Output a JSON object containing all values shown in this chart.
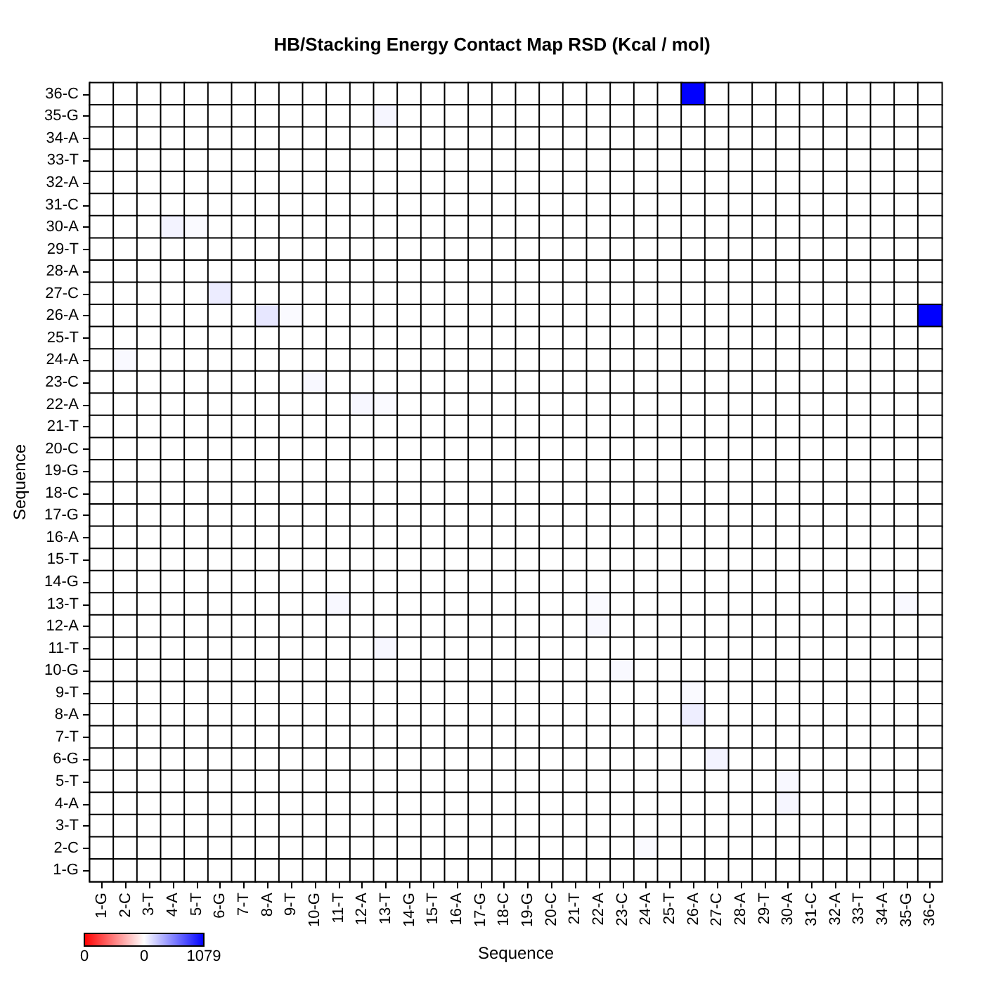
{
  "chart_data": {
    "type": "heatmap",
    "title": "HB/Stacking Energy Contact Map RSD (Kcal / mol)",
    "xlabel": "Sequence",
    "ylabel": "Sequence",
    "categories": [
      "1-G",
      "2-C",
      "3-T",
      "4-A",
      "5-T",
      "6-G",
      "7-T",
      "8-A",
      "9-T",
      "10-G",
      "11-T",
      "12-A",
      "13-T",
      "14-G",
      "15-T",
      "16-A",
      "17-G",
      "18-C",
      "19-G",
      "20-C",
      "21-T",
      "22-A",
      "23-C",
      "24-A",
      "25-T",
      "26-A",
      "27-C",
      "28-A",
      "29-T",
      "30-A",
      "31-C",
      "32-A",
      "33-T",
      "34-A",
      "35-G",
      "36-C"
    ],
    "y_categories": [
      "36-C",
      "35-G",
      "34-A",
      "33-T",
      "32-A",
      "31-C",
      "30-A",
      "29-T",
      "28-A",
      "27-C",
      "26-A",
      "25-T",
      "24-A",
      "23-C",
      "22-A",
      "21-T",
      "20-C",
      "19-G",
      "18-C",
      "17-G",
      "16-A",
      "15-T",
      "14-G",
      "13-T",
      "12-A",
      "11-T",
      "10-G",
      "9-T",
      "8-A",
      "7-T",
      "6-G",
      "5-T",
      "4-A",
      "3-T",
      "2-C",
      "1-G"
    ],
    "cells": [
      [
        0,
        0,
        0,
        0,
        0,
        0,
        0,
        0,
        0,
        0,
        0,
        0,
        0,
        0,
        0,
        0,
        0,
        0,
        0,
        0,
        0,
        0,
        0,
        0,
        0,
        1079,
        0,
        0,
        0,
        0,
        0,
        0,
        0,
        0,
        0,
        0
      ],
      [
        0,
        0,
        0,
        0,
        0,
        0,
        0,
        0,
        0,
        0,
        0,
        0,
        40,
        0,
        0,
        0,
        0,
        0,
        0,
        0,
        0,
        0,
        0,
        0,
        0,
        0,
        0,
        0,
        0,
        0,
        0,
        0,
        0,
        0,
        0,
        0
      ],
      [
        0,
        0,
        0,
        0,
        0,
        0,
        0,
        0,
        0,
        0,
        0,
        0,
        0,
        0,
        0,
        0,
        0,
        0,
        0,
        0,
        0,
        0,
        0,
        0,
        0,
        0,
        0,
        0,
        0,
        0,
        0,
        0,
        0,
        0,
        0,
        0
      ],
      [
        0,
        0,
        0,
        0,
        0,
        0,
        0,
        0,
        0,
        0,
        0,
        0,
        0,
        0,
        0,
        0,
        0,
        0,
        0,
        0,
        0,
        0,
        0,
        0,
        0,
        0,
        0,
        0,
        0,
        0,
        0,
        0,
        0,
        0,
        0,
        0
      ],
      [
        0,
        0,
        0,
        0,
        0,
        0,
        0,
        0,
        0,
        0,
        0,
        0,
        0,
        0,
        0,
        0,
        0,
        0,
        0,
        0,
        0,
        0,
        0,
        0,
        0,
        0,
        0,
        0,
        0,
        0,
        0,
        0,
        0,
        0,
        0,
        0
      ],
      [
        0,
        0,
        0,
        0,
        0,
        0,
        0,
        0,
        0,
        0,
        0,
        0,
        0,
        0,
        0,
        0,
        0,
        0,
        0,
        0,
        0,
        0,
        0,
        0,
        0,
        0,
        0,
        0,
        0,
        0,
        0,
        0,
        0,
        0,
        0,
        0
      ],
      [
        0,
        0,
        0,
        50,
        20,
        0,
        0,
        0,
        0,
        0,
        0,
        0,
        0,
        0,
        0,
        0,
        0,
        0,
        0,
        0,
        0,
        0,
        0,
        0,
        0,
        0,
        0,
        0,
        0,
        0,
        0,
        0,
        0,
        0,
        0,
        0
      ],
      [
        0,
        0,
        0,
        0,
        0,
        0,
        0,
        0,
        0,
        0,
        0,
        0,
        0,
        0,
        0,
        0,
        0,
        0,
        0,
        0,
        0,
        0,
        0,
        0,
        0,
        0,
        0,
        0,
        0,
        0,
        0,
        0,
        0,
        0,
        0,
        0
      ],
      [
        0,
        0,
        0,
        0,
        0,
        0,
        0,
        0,
        0,
        0,
        0,
        0,
        0,
        0,
        0,
        0,
        0,
        0,
        0,
        0,
        0,
        0,
        0,
        0,
        0,
        0,
        0,
        0,
        0,
        0,
        0,
        0,
        0,
        0,
        0,
        0
      ],
      [
        0,
        0,
        0,
        0,
        0,
        80,
        0,
        0,
        0,
        0,
        0,
        0,
        0,
        0,
        0,
        0,
        0,
        0,
        0,
        0,
        0,
        0,
        0,
        0,
        0,
        0,
        0,
        0,
        0,
        0,
        0,
        0,
        0,
        0,
        0,
        0
      ],
      [
        0,
        0,
        0,
        0,
        0,
        0,
        0,
        100,
        20,
        0,
        0,
        0,
        0,
        0,
        0,
        0,
        0,
        0,
        0,
        0,
        0,
        0,
        0,
        0,
        0,
        0,
        0,
        0,
        0,
        0,
        0,
        0,
        0,
        0,
        0,
        1079
      ],
      [
        0,
        0,
        0,
        0,
        0,
        0,
        0,
        0,
        0,
        0,
        0,
        0,
        0,
        0,
        0,
        0,
        0,
        0,
        0,
        0,
        0,
        0,
        0,
        0,
        0,
        0,
        0,
        0,
        0,
        0,
        0,
        0,
        0,
        0,
        0,
        0
      ],
      [
        0,
        25,
        0,
        0,
        0,
        0,
        0,
        0,
        0,
        0,
        0,
        0,
        0,
        0,
        0,
        0,
        0,
        0,
        0,
        0,
        0,
        0,
        0,
        0,
        0,
        0,
        0,
        0,
        0,
        0,
        0,
        0,
        0,
        0,
        0,
        0
      ],
      [
        0,
        0,
        0,
        0,
        0,
        0,
        0,
        0,
        0,
        30,
        0,
        0,
        0,
        0,
        0,
        0,
        0,
        0,
        0,
        0,
        0,
        0,
        0,
        0,
        0,
        0,
        0,
        0,
        0,
        0,
        0,
        0,
        0,
        0,
        0,
        0
      ],
      [
        0,
        0,
        0,
        0,
        0,
        0,
        0,
        0,
        0,
        0,
        0,
        35,
        20,
        0,
        0,
        0,
        0,
        0,
        0,
        0,
        0,
        0,
        0,
        0,
        0,
        0,
        0,
        0,
        0,
        0,
        0,
        0,
        0,
        0,
        0,
        0
      ],
      [
        0,
        0,
        0,
        0,
        0,
        0,
        0,
        0,
        0,
        0,
        0,
        0,
        0,
        0,
        0,
        0,
        0,
        0,
        0,
        0,
        0,
        0,
        0,
        0,
        0,
        0,
        0,
        0,
        0,
        0,
        0,
        0,
        0,
        0,
        0,
        0
      ],
      [
        0,
        0,
        0,
        0,
        0,
        0,
        0,
        0,
        0,
        0,
        0,
        0,
        0,
        0,
        0,
        0,
        0,
        0,
        0,
        0,
        0,
        0,
        0,
        0,
        0,
        0,
        0,
        0,
        0,
        0,
        0,
        0,
        0,
        0,
        0,
        0
      ],
      [
        0,
        0,
        0,
        0,
        0,
        0,
        0,
        0,
        0,
        0,
        0,
        0,
        0,
        0,
        0,
        0,
        0,
        0,
        0,
        0,
        0,
        0,
        0,
        0,
        0,
        0,
        0,
        0,
        0,
        0,
        0,
        0,
        0,
        0,
        0,
        0
      ],
      [
        0,
        0,
        0,
        0,
        0,
        0,
        0,
        0,
        0,
        0,
        0,
        0,
        0,
        0,
        0,
        0,
        0,
        0,
        0,
        0,
        0,
        0,
        0,
        0,
        0,
        0,
        0,
        0,
        0,
        0,
        0,
        0,
        0,
        0,
        0,
        0
      ],
      [
        0,
        0,
        0,
        0,
        0,
        0,
        0,
        0,
        0,
        0,
        0,
        0,
        0,
        0,
        0,
        0,
        0,
        0,
        0,
        0,
        0,
        0,
        0,
        0,
        0,
        0,
        0,
        0,
        0,
        0,
        0,
        0,
        0,
        0,
        0,
        0
      ],
      [
        0,
        0,
        0,
        0,
        0,
        0,
        0,
        0,
        0,
        0,
        0,
        0,
        0,
        0,
        0,
        0,
        0,
        0,
        0,
        0,
        0,
        0,
        0,
        0,
        0,
        0,
        0,
        0,
        0,
        0,
        0,
        0,
        0,
        0,
        0,
        0
      ],
      [
        0,
        0,
        0,
        0,
        0,
        0,
        0,
        0,
        0,
        0,
        0,
        0,
        0,
        0,
        0,
        0,
        0,
        0,
        0,
        0,
        0,
        0,
        0,
        0,
        0,
        0,
        0,
        0,
        0,
        0,
        0,
        0,
        0,
        0,
        0,
        0
      ],
      [
        0,
        0,
        0,
        0,
        0,
        0,
        0,
        0,
        0,
        0,
        0,
        0,
        0,
        0,
        0,
        0,
        0,
        0,
        0,
        0,
        0,
        0,
        0,
        0,
        0,
        0,
        0,
        0,
        0,
        0,
        0,
        0,
        0,
        0,
        0,
        0
      ],
      [
        0,
        0,
        0,
        0,
        0,
        0,
        0,
        0,
        0,
        0,
        30,
        0,
        0,
        0,
        0,
        0,
        0,
        0,
        0,
        0,
        0,
        20,
        0,
        0,
        0,
        0,
        0,
        0,
        0,
        0,
        0,
        0,
        0,
        0,
        25,
        0
      ],
      [
        0,
        0,
        0,
        0,
        0,
        0,
        0,
        0,
        0,
        0,
        0,
        0,
        0,
        0,
        0,
        0,
        0,
        0,
        0,
        0,
        0,
        30,
        0,
        0,
        0,
        0,
        0,
        0,
        0,
        0,
        0,
        0,
        0,
        0,
        0,
        0
      ],
      [
        0,
        0,
        0,
        0,
        0,
        0,
        0,
        0,
        0,
        0,
        0,
        0,
        35,
        0,
        0,
        0,
        0,
        0,
        0,
        0,
        0,
        0,
        0,
        0,
        0,
        0,
        0,
        0,
        0,
        0,
        0,
        0,
        0,
        0,
        0,
        0
      ],
      [
        0,
        0,
        0,
        0,
        0,
        0,
        0,
        0,
        0,
        0,
        0,
        0,
        0,
        0,
        0,
        0,
        0,
        0,
        0,
        0,
        0,
        0,
        25,
        0,
        0,
        0,
        0,
        0,
        0,
        0,
        0,
        0,
        0,
        0,
        0,
        0
      ],
      [
        0,
        0,
        0,
        0,
        0,
        0,
        0,
        0,
        0,
        0,
        0,
        0,
        0,
        0,
        0,
        0,
        0,
        0,
        0,
        0,
        0,
        0,
        0,
        0,
        0,
        20,
        0,
        0,
        0,
        0,
        0,
        0,
        0,
        0,
        0,
        0
      ],
      [
        0,
        0,
        0,
        0,
        0,
        0,
        0,
        0,
        0,
        0,
        0,
        0,
        0,
        0,
        0,
        0,
        0,
        0,
        0,
        0,
        0,
        0,
        0,
        0,
        0,
        70,
        0,
        0,
        0,
        0,
        0,
        0,
        0,
        0,
        0,
        0
      ],
      [
        0,
        0,
        0,
        0,
        0,
        0,
        0,
        0,
        0,
        0,
        0,
        0,
        0,
        0,
        0,
        0,
        0,
        0,
        0,
        0,
        0,
        0,
        0,
        0,
        0,
        0,
        0,
        0,
        0,
        0,
        0,
        0,
        0,
        0,
        0,
        0
      ],
      [
        0,
        0,
        0,
        0,
        0,
        0,
        0,
        0,
        0,
        0,
        0,
        0,
        0,
        0,
        0,
        0,
        0,
        0,
        0,
        0,
        0,
        0,
        0,
        0,
        0,
        0,
        50,
        0,
        0,
        0,
        0,
        0,
        0,
        0,
        0,
        0
      ],
      [
        0,
        0,
        0,
        0,
        0,
        0,
        0,
        0,
        0,
        0,
        0,
        0,
        0,
        0,
        0,
        0,
        0,
        0,
        0,
        0,
        0,
        0,
        0,
        0,
        0,
        0,
        0,
        0,
        0,
        30,
        0,
        0,
        0,
        0,
        0,
        0
      ],
      [
        0,
        0,
        0,
        0,
        0,
        0,
        0,
        0,
        0,
        0,
        0,
        0,
        0,
        0,
        0,
        0,
        0,
        0,
        0,
        0,
        0,
        0,
        0,
        0,
        0,
        0,
        0,
        0,
        0,
        40,
        0,
        0,
        0,
        0,
        0,
        0
      ],
      [
        0,
        0,
        0,
        0,
        0,
        0,
        0,
        0,
        0,
        0,
        0,
        0,
        0,
        0,
        0,
        0,
        0,
        0,
        0,
        0,
        0,
        0,
        0,
        0,
        0,
        0,
        0,
        0,
        0,
        0,
        0,
        0,
        0,
        0,
        0,
        0
      ],
      [
        0,
        0,
        0,
        0,
        0,
        0,
        0,
        0,
        0,
        0,
        0,
        0,
        0,
        0,
        0,
        0,
        0,
        0,
        0,
        0,
        0,
        0,
        0,
        20,
        0,
        0,
        0,
        0,
        0,
        0,
        0,
        0,
        0,
        0,
        0,
        0
      ],
      [
        0,
        0,
        0,
        0,
        0,
        0,
        0,
        0,
        0,
        0,
        0,
        0,
        0,
        0,
        0,
        0,
        0,
        0,
        0,
        0,
        0,
        0,
        0,
        0,
        0,
        0,
        0,
        0,
        0,
        0,
        0,
        0,
        0,
        0,
        0,
        0
      ]
    ],
    "clim": [
      -1079,
      1079
    ],
    "cticks": [
      0,
      1079
    ],
    "annotations": [
      "0"
    ]
  }
}
